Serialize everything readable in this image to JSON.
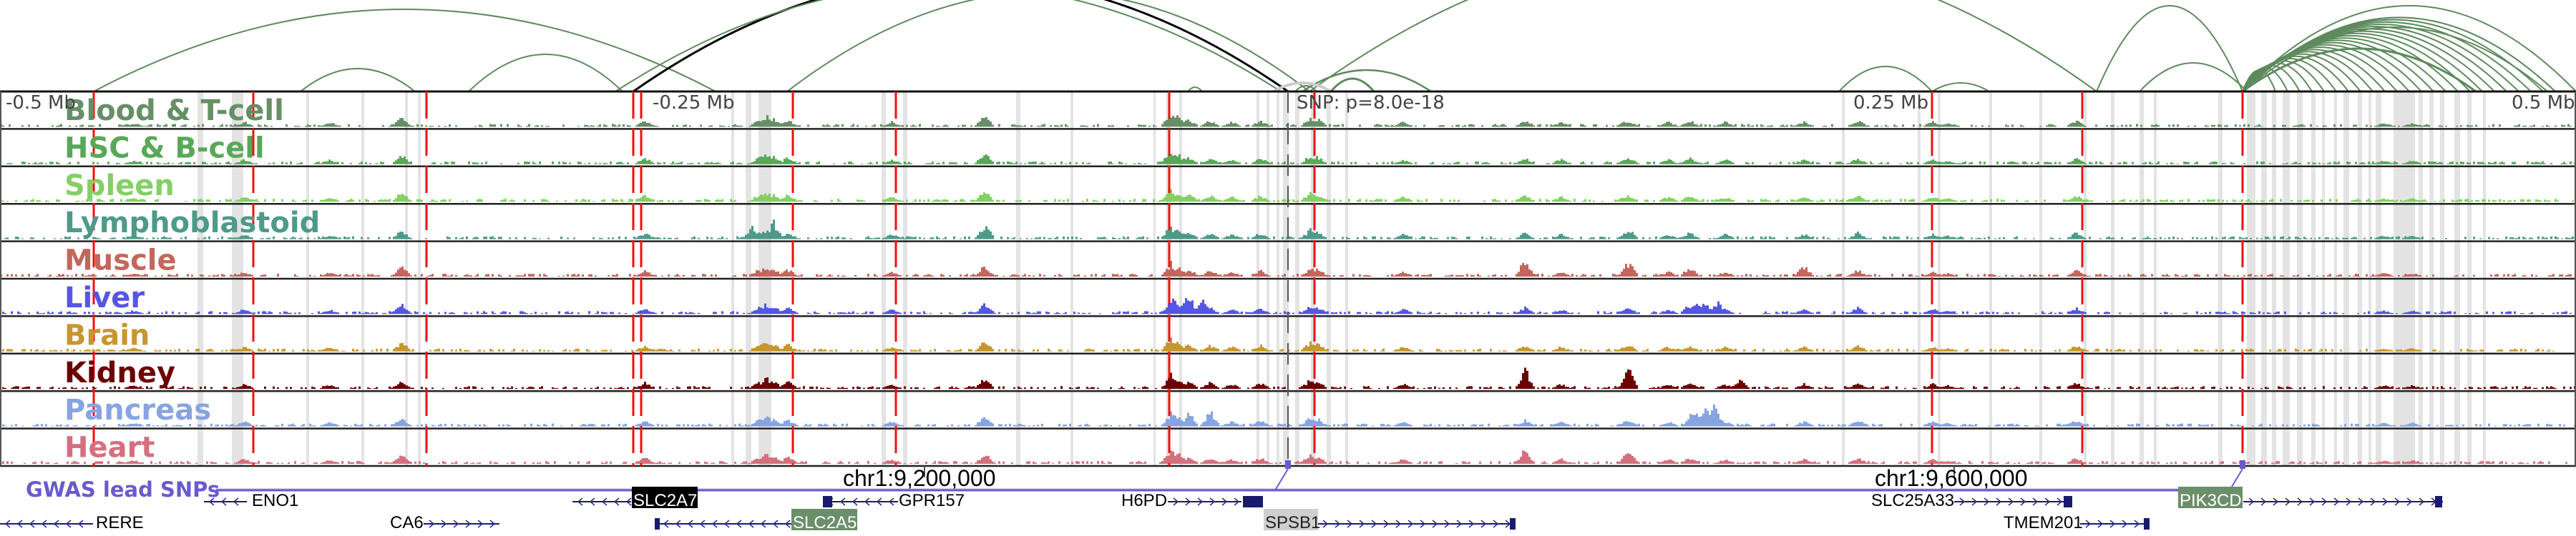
{
  "axis": {
    "left": "-0.5 Mb",
    "left_mid": "-0.25 Mb",
    "snp": "SNP: p=8.0e-18",
    "right_mid": "0.25 Mb",
    "right": "0.5 Mb"
  },
  "tracks": [
    {
      "label": "Blood & T-cell",
      "color": "#678f67"
    },
    {
      "label": "HSC & B-cell",
      "color": "#58a858"
    },
    {
      "label": "Spleen",
      "color": "#85cf66"
    },
    {
      "label": "Lymphoblastoid",
      "color": "#4e9a8a"
    },
    {
      "label": "Muscle",
      "color": "#c4665c"
    },
    {
      "label": "Liver",
      "color": "#5555e6"
    },
    {
      "label": "Brain",
      "color": "#c8962e"
    },
    {
      "label": "Kidney",
      "color": "#6b0000"
    },
    {
      "label": "Pancreas",
      "color": "#88a4e0"
    },
    {
      "label": "Heart",
      "color": "#d4707e"
    }
  ],
  "coordinates": [
    "chr1:9,200,000",
    "chr1:9,600,000"
  ],
  "gwas_label": "GWAS lead SNPs",
  "gwas_color": "#6a5acd",
  "genes": [
    {
      "name": "ENO1",
      "strand": "-",
      "style": "plain"
    },
    {
      "name": "SLC2A7",
      "strand": "-",
      "style": "black"
    },
    {
      "name": "GPR157",
      "strand": "-",
      "style": "plain"
    },
    {
      "name": "H6PD",
      "strand": "+",
      "style": "plain"
    },
    {
      "name": "SLC25A33",
      "strand": "+",
      "style": "plain"
    },
    {
      "name": "PIK3CD",
      "strand": "+",
      "style": "green"
    },
    {
      "name": "RERE",
      "strand": "-",
      "style": "plain"
    },
    {
      "name": "CA6",
      "strand": "+",
      "style": "plain"
    },
    {
      "name": "SLC2A5",
      "strand": "-",
      "style": "green"
    },
    {
      "name": "SPSB1",
      "strand": "+",
      "style": "grey"
    },
    {
      "name": "TMEM201",
      "strand": "+",
      "style": "plain"
    }
  ]
}
